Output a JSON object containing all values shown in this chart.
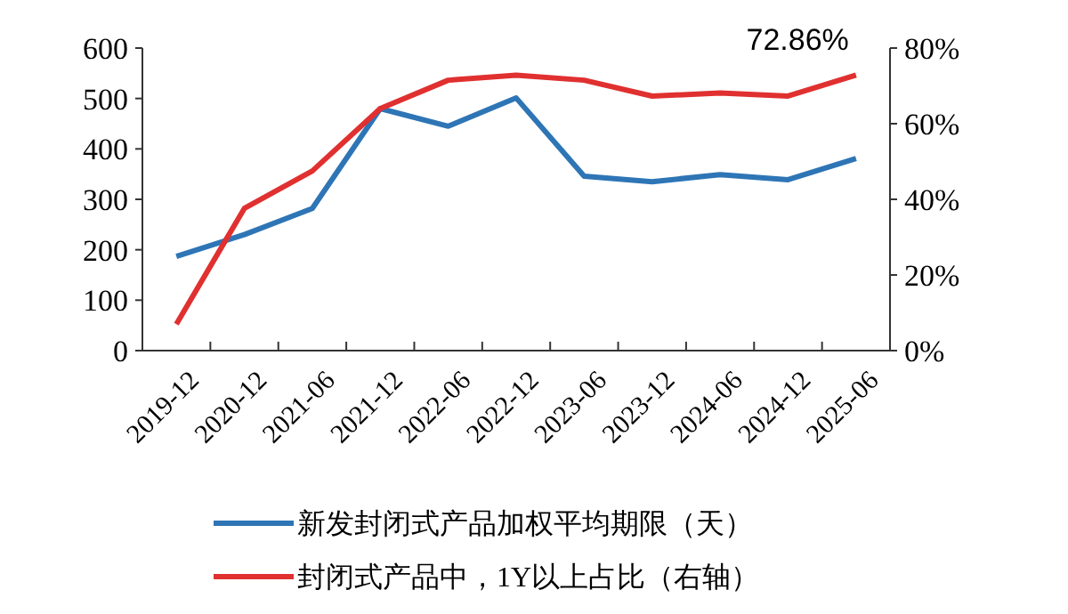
{
  "chart_data": {
    "type": "line",
    "categories": [
      "2019-12",
      "2020-12",
      "2021-06",
      "2021-12",
      "2022-06",
      "2022-12",
      "2023-06",
      "2023-12",
      "2024-06",
      "2024-12",
      "2025-06"
    ],
    "series": [
      {
        "name": "新发封闭式产品加权平均期限（天）",
        "color": "#2e75b6",
        "values": [
          187,
          230,
          282,
          480,
          445,
          501,
          346,
          335,
          349,
          339,
          381
        ]
      },
      {
        "name": "封闭式产品中，1Y以上占比（右轴）",
        "color": "#e03030",
        "axis": "y2",
        "values": [
          7,
          37.6,
          47.5,
          64,
          71.5,
          72.8,
          71.5,
          67.3,
          68.1,
          67.3,
          72.86
        ],
        "value_labels": [
          null,
          null,
          null,
          null,
          null,
          null,
          null,
          null,
          null,
          null,
          "72.86%"
        ]
      }
    ],
    "ylim": [
      0,
      600
    ],
    "yticks": [
      0,
      100,
      200,
      300,
      400,
      500,
      600
    ],
    "y2lim": [
      0,
      80
    ],
    "y2ticks": [
      {
        "value": 0,
        "label": "0%"
      },
      {
        "value": 20,
        "label": "20%"
      },
      {
        "value": 40,
        "label": "40%"
      },
      {
        "value": 60,
        "label": "60%"
      },
      {
        "value": 80,
        "label": "80%"
      }
    ],
    "legend": "bottom",
    "grid": false,
    "marker": "none",
    "line_style": "solid"
  }
}
